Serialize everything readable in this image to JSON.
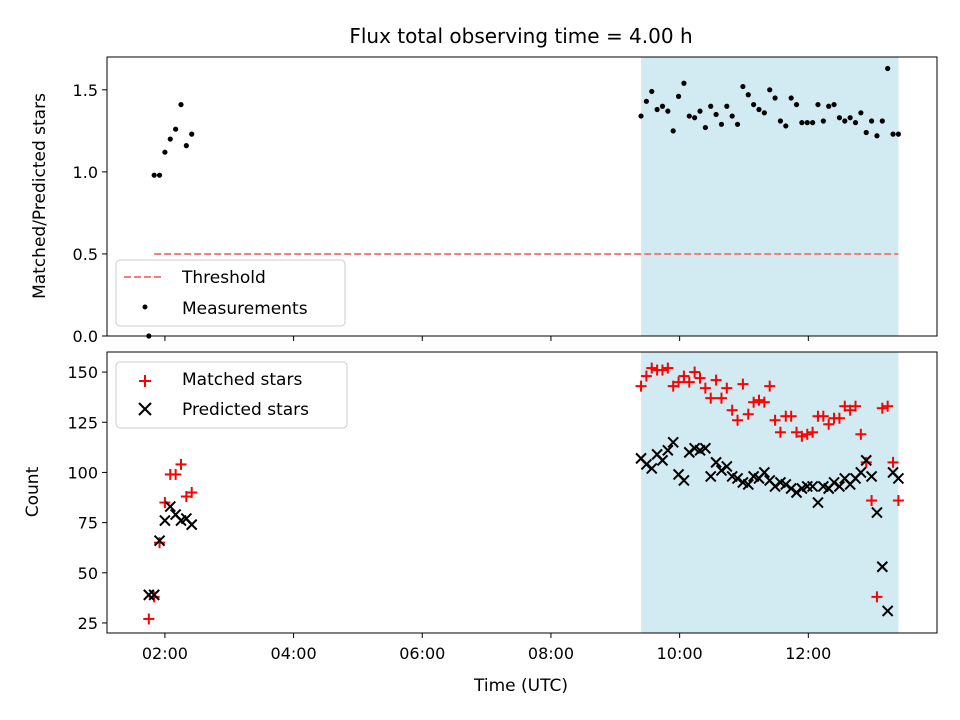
{
  "title": "Flux total observing time = 4.00 h",
  "chart_data": [
    {
      "type": "scatter",
      "ylabel": "Matched/Predicted stars",
      "ylim": [
        0.0,
        1.7
      ],
      "yticks": [
        0.0,
        0.5,
        1.0,
        1.5
      ],
      "ytick_labels": [
        "0.0",
        "0.5",
        "1.0",
        "1.5"
      ],
      "highlight_span": {
        "from": "09:24",
        "to": "13:24",
        "color": "#add8e6"
      },
      "series": [
        {
          "name": "Threshold",
          "kind": "dashed-line",
          "color": "#f08080",
          "x": [
            "01:50",
            "13:24"
          ],
          "y": [
            0.5,
            0.5
          ]
        },
        {
          "name": "Measurements",
          "kind": "dots",
          "color": "#000000",
          "x": [
            "01:45",
            "01:50",
            "01:55",
            "02:00",
            "02:05",
            "02:10",
            "02:15",
            "02:20",
            "02:25",
            "09:24",
            "09:29",
            "09:34",
            "09:39",
            "09:44",
            "09:49",
            "09:54",
            "09:59",
            "10:04",
            "10:09",
            "10:14",
            "10:19",
            "10:24",
            "10:29",
            "10:34",
            "10:39",
            "10:44",
            "10:49",
            "10:54",
            "10:59",
            "11:04",
            "11:09",
            "11:14",
            "11:19",
            "11:24",
            "11:29",
            "11:34",
            "11:39",
            "11:44",
            "11:49",
            "11:54",
            "11:59",
            "12:04",
            "12:09",
            "12:14",
            "12:19",
            "12:24",
            "12:29",
            "12:34",
            "12:39",
            "12:44",
            "12:49",
            "12:54",
            "12:59",
            "13:04",
            "13:09",
            "13:14",
            "13:19",
            "13:24"
          ],
          "y": [
            0.0,
            0.98,
            0.98,
            1.12,
            1.2,
            1.26,
            1.41,
            1.16,
            1.23,
            1.34,
            1.43,
            1.49,
            1.38,
            1.4,
            1.37,
            1.25,
            1.46,
            1.54,
            1.34,
            1.33,
            1.37,
            1.27,
            1.4,
            1.35,
            1.29,
            1.4,
            1.34,
            1.29,
            1.52,
            1.47,
            1.41,
            1.38,
            1.36,
            1.5,
            1.45,
            1.31,
            1.28,
            1.45,
            1.41,
            1.3,
            1.3,
            1.3,
            1.41,
            1.31,
            1.4,
            1.41,
            1.33,
            1.31,
            1.33,
            1.3,
            1.36,
            1.24,
            1.31,
            1.22,
            1.31,
            1.63,
            1.23,
            1.23
          ]
        }
      ],
      "legend": {
        "placement": "lower-left",
        "labels": [
          "Threshold",
          "Measurements"
        ]
      }
    },
    {
      "type": "scatter",
      "xlabel": "Time (UTC)",
      "ylabel": "Count",
      "ylim": [
        20,
        160
      ],
      "yticks": [
        25,
        50,
        75,
        100,
        125,
        150
      ],
      "ytick_labels": [
        "25",
        "50",
        "75",
        "100",
        "125",
        "150"
      ],
      "xticks": [
        "02:00",
        "04:00",
        "06:00",
        "08:00",
        "10:00",
        "12:00"
      ],
      "xtick_labels": [
        "02:00",
        "04:00",
        "06:00",
        "08:00",
        "10:00",
        "12:00"
      ],
      "highlight_span": {
        "from": "09:24",
        "to": "13:24",
        "color": "#add8e6"
      },
      "series": [
        {
          "name": "Matched stars",
          "marker": "plus",
          "color": "#ff0000",
          "x": [
            "01:45",
            "01:50",
            "01:55",
            "02:00",
            "02:05",
            "02:10",
            "02:15",
            "02:20",
            "02:25",
            "09:24",
            "09:29",
            "09:34",
            "09:39",
            "09:44",
            "09:49",
            "09:54",
            "09:59",
            "10:04",
            "10:09",
            "10:14",
            "10:19",
            "10:24",
            "10:29",
            "10:34",
            "10:39",
            "10:44",
            "10:49",
            "10:54",
            "10:59",
            "11:04",
            "11:09",
            "11:14",
            "11:19",
            "11:24",
            "11:29",
            "11:34",
            "11:39",
            "11:44",
            "11:49",
            "11:54",
            "11:59",
            "12:04",
            "12:09",
            "12:14",
            "12:19",
            "12:24",
            "12:29",
            "12:34",
            "12:39",
            "12:44",
            "12:49",
            "12:54",
            "12:59",
            "13:04",
            "13:09",
            "13:14",
            "13:19",
            "13:24"
          ],
          "y": [
            27,
            38,
            65,
            85,
            99,
            99,
            104,
            88,
            90,
            143,
            148,
            152,
            151,
            151,
            152,
            143,
            145,
            148,
            145,
            150,
            147,
            142,
            137,
            146,
            137,
            142,
            131,
            126,
            144,
            129,
            135,
            136,
            135,
            143,
            126,
            120,
            128,
            128,
            120,
            118,
            119,
            120,
            128,
            128,
            124,
            127,
            127,
            133,
            131,
            133,
            119,
            105,
            86,
            38,
            132,
            133,
            105,
            86
          ]
        },
        {
          "name": "Predicted stars",
          "marker": "x",
          "color": "#000000",
          "x": [
            "01:45",
            "01:50",
            "01:55",
            "02:00",
            "02:05",
            "02:10",
            "02:15",
            "02:20",
            "02:25",
            "09:24",
            "09:29",
            "09:34",
            "09:39",
            "09:44",
            "09:49",
            "09:54",
            "09:59",
            "10:04",
            "10:09",
            "10:14",
            "10:19",
            "10:24",
            "10:29",
            "10:34",
            "10:39",
            "10:44",
            "10:49",
            "10:54",
            "10:59",
            "11:04",
            "11:09",
            "11:14",
            "11:19",
            "11:24",
            "11:29",
            "11:34",
            "11:39",
            "11:44",
            "11:49",
            "11:54",
            "11:59",
            "12:04",
            "12:09",
            "12:14",
            "12:19",
            "12:24",
            "12:29",
            "12:34",
            "12:39",
            "12:44",
            "12:49",
            "12:54",
            "12:59",
            "13:04",
            "13:09",
            "13:14",
            "13:19",
            "13:24"
          ],
          "y": [
            39,
            39,
            66,
            76,
            83,
            79,
            76,
            77,
            74,
            107,
            104,
            102,
            109,
            106,
            111,
            115,
            99,
            96,
            110,
            112,
            111,
            112,
            98,
            105,
            101,
            103,
            98,
            97,
            95,
            94,
            98,
            97,
            100,
            96,
            93,
            95,
            94,
            92,
            90,
            92,
            93,
            93,
            85,
            93,
            92,
            95,
            93,
            97,
            94,
            97,
            100,
            106,
            98,
            80,
            53,
            31,
            100,
            97
          ]
        }
      ],
      "legend": {
        "placement": "top-left",
        "labels": [
          "Matched stars",
          "Predicted stars"
        ]
      }
    }
  ]
}
